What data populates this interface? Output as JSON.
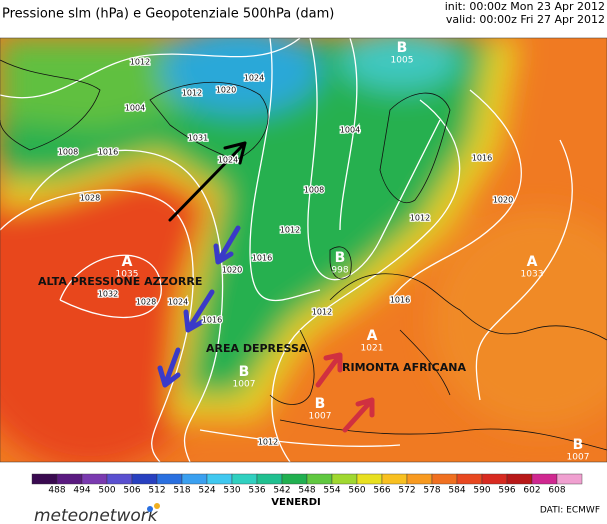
{
  "header": {
    "title": "Pressione slm (hPa) e Geopotenziale 500hPa (dam)",
    "init": "init: 00:00z Mon 23 Apr 2012",
    "valid": "valid: 00:00z Fri 27 Apr 2012"
  },
  "annotations": [
    "ALTA PRESSIONE AZZORRE",
    "AREA DEPRESSA",
    "RIMONTA AFRICANA"
  ],
  "centers": [
    {
      "letter": "A",
      "value": 1035
    },
    {
      "letter": "B",
      "value": 998
    },
    {
      "letter": "A",
      "value": 1033
    },
    {
      "letter": "A",
      "value": 1021
    },
    {
      "letter": "B",
      "value": 1007
    },
    {
      "letter": "B",
      "value": 1007
    },
    {
      "letter": "B",
      "value": 1005
    },
    {
      "letter": "B",
      "value": 1007
    }
  ],
  "isobar_labels": [
    1012,
    1004,
    1008,
    1016,
    1031,
    1012,
    1020,
    1024,
    1028,
    1032,
    1028,
    1024,
    1020,
    1016,
    1016,
    1012,
    1008,
    1004,
    1012,
    1016,
    1020,
    1016,
    1012,
    1012,
    1024
  ],
  "colorbar": {
    "ticks": [
      488,
      494,
      500,
      506,
      512,
      518,
      524,
      530,
      536,
      542,
      548,
      554,
      560,
      566,
      572,
      578,
      584,
      590,
      596,
      602,
      608
    ],
    "colors": [
      "#3a0a50",
      "#5a1a80",
      "#7a3ab0",
      "#5a50d0",
      "#2840c0",
      "#2a70e0",
      "#3aa0f0",
      "#40c8f0",
      "#30d0c0",
      "#20c090",
      "#20b050",
      "#60c840",
      "#a0d830",
      "#e8e020",
      "#f8c020",
      "#f89a20",
      "#f07020",
      "#e84820",
      "#d82a20",
      "#b81818",
      "#d02890",
      "#f0a0d0"
    ]
  },
  "footer": {
    "day": "VENERDI",
    "source": "DATI: ECMWF",
    "brand": "meteonetwork"
  }
}
